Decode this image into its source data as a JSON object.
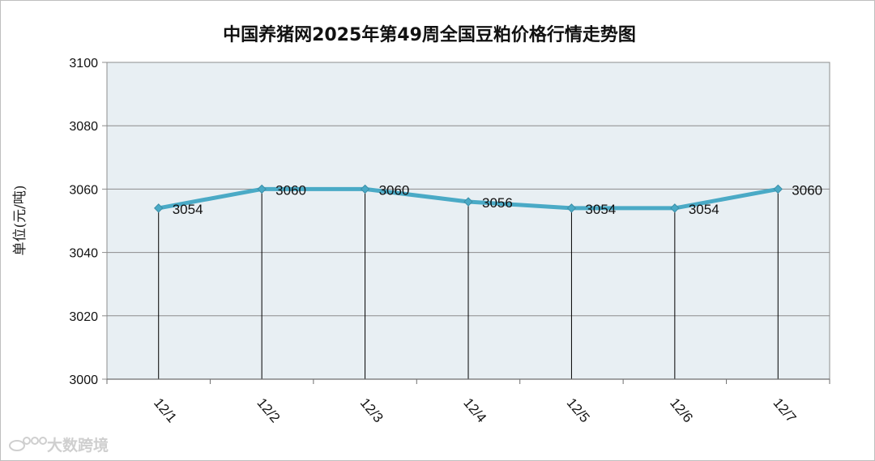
{
  "chart_data": {
    "type": "line",
    "title": "中国养猪网2025年第49周全国豆粕价格行情走势图",
    "ylabel": "单位(元/吨)",
    "xlabel": "",
    "categories": [
      "12/1",
      "12/2",
      "12/3",
      "12/4",
      "12/5",
      "12/6",
      "12/7"
    ],
    "series": [
      {
        "values": [
          3054,
          3060,
          3060,
          3056,
          3054,
          3054,
          3060
        ]
      }
    ],
    "data_labels": [
      "3054",
      "3060",
      "3060",
      "3056",
      "3054",
      "3054",
      "3060"
    ],
    "yticks": [
      "3000",
      "3020",
      "3040",
      "3060",
      "3080",
      "3100"
    ],
    "ylim": [
      3000,
      3100
    ],
    "grid": true,
    "legend": "none",
    "colors": {
      "line": "#4aaac6",
      "plot_bg": "#e8eff3",
      "grid": "#8c8c8c",
      "drop_line": "#000000"
    }
  },
  "watermark": {
    "text": "大数跨境",
    "icon": "weibo-logo-icon"
  }
}
